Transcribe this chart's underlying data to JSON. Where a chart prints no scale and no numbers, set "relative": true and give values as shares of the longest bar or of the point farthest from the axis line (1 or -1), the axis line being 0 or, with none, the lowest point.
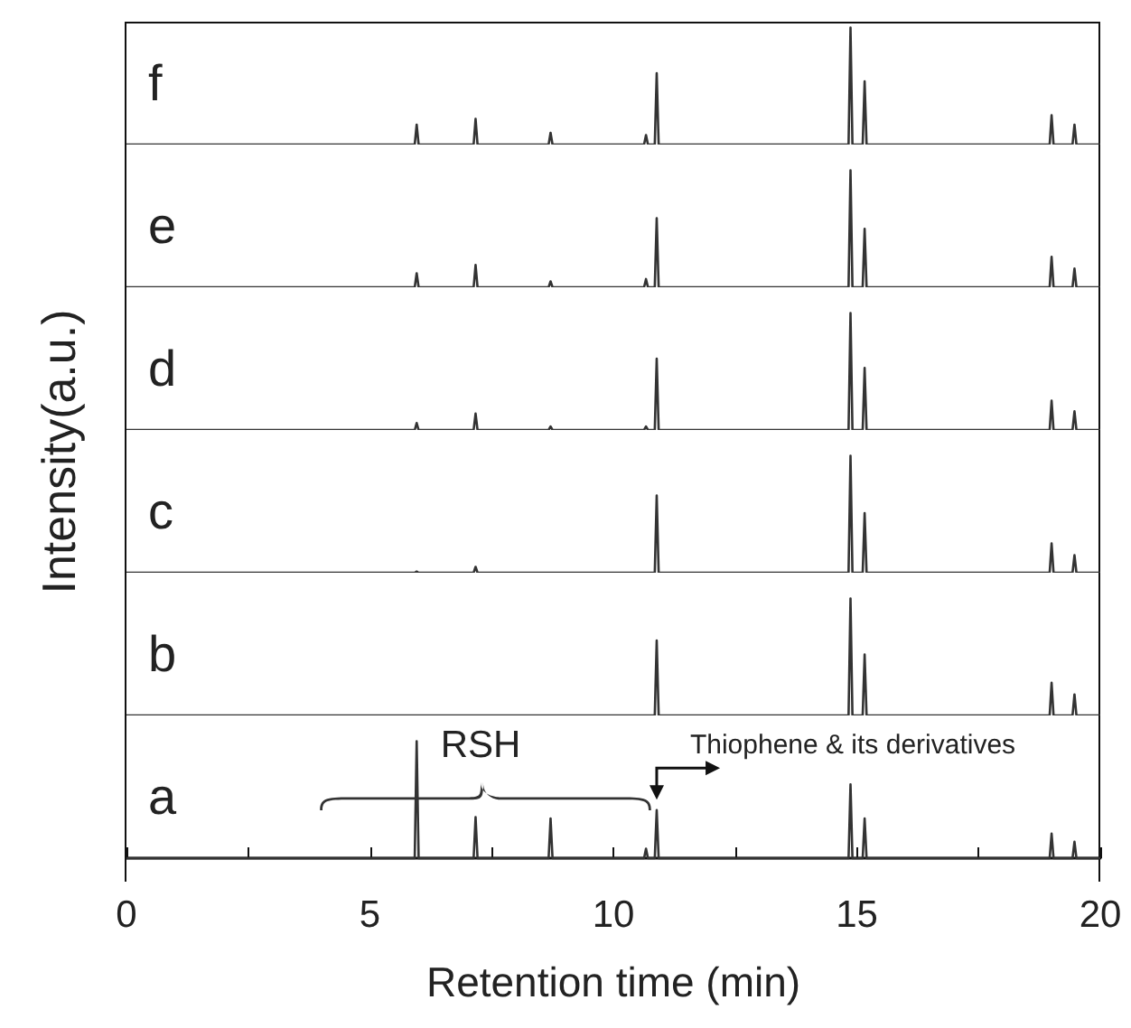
{
  "chart_data": [
    {
      "type": "line",
      "relative": true,
      "xlim": [
        0,
        20
      ],
      "tick_labels": false,
      "marker": "none",
      "series": [
        {
          "name": "f",
          "color": "#333333",
          "x": [
            0,
            5.92,
            5.96,
            6.0,
            7.13,
            7.17,
            7.21,
            8.67,
            8.71,
            8.75,
            10.63,
            10.67,
            10.71,
            10.85,
            10.89,
            10.93,
            14.83,
            14.87,
            14.91,
            15.12,
            15.16,
            15.2,
            18.96,
            19.0,
            19.04,
            19.43,
            19.47,
            19.51,
            20
          ],
          "values": [
            0,
            0,
            0.17,
            0,
            0,
            0.22,
            0,
            0,
            0.1,
            0,
            0,
            0.08,
            0,
            0,
            0.61,
            0,
            0,
            1,
            0,
            0,
            0.54,
            0,
            0,
            0.25,
            0,
            0,
            0.17,
            0,
            0
          ]
        }
      ]
    },
    {
      "type": "line",
      "relative": true,
      "xlim": [
        0,
        20
      ],
      "tick_labels": false,
      "marker": "none",
      "series": [
        {
          "name": "e",
          "color": "#333333",
          "x": [
            0,
            5.92,
            5.96,
            6.0,
            7.13,
            7.17,
            7.21,
            8.67,
            8.71,
            8.75,
            10.63,
            10.67,
            10.71,
            10.85,
            10.89,
            10.93,
            14.83,
            14.87,
            14.91,
            15.12,
            15.16,
            15.2,
            18.96,
            19.0,
            19.04,
            19.43,
            19.47,
            19.51,
            20
          ],
          "values": [
            0,
            0,
            0.12,
            0,
            0,
            0.19,
            0,
            0,
            0.05,
            0,
            0,
            0.07,
            0,
            0,
            0.59,
            0,
            0,
            1,
            0,
            0,
            0.5,
            0,
            0,
            0.26,
            0,
            0,
            0.16,
            0,
            0
          ]
        }
      ]
    },
    {
      "type": "line",
      "relative": true,
      "xlim": [
        0,
        20
      ],
      "tick_labels": false,
      "marker": "none",
      "series": [
        {
          "name": "d",
          "color": "#333333",
          "x": [
            0,
            5.92,
            5.96,
            6.0,
            7.13,
            7.17,
            7.21,
            8.67,
            8.71,
            8.75,
            10.63,
            10.67,
            10.71,
            10.85,
            10.89,
            10.93,
            14.83,
            14.87,
            14.91,
            15.12,
            15.16,
            15.2,
            18.96,
            19.0,
            19.04,
            19.43,
            19.47,
            19.51,
            20
          ],
          "values": [
            0,
            0,
            0.06,
            0,
            0,
            0.14,
            0,
            0,
            0.03,
            0,
            0,
            0.03,
            0,
            0,
            0.61,
            0,
            0,
            1,
            0,
            0,
            0.53,
            0,
            0,
            0.25,
            0,
            0,
            0.16,
            0,
            0
          ]
        }
      ]
    },
    {
      "type": "line",
      "relative": true,
      "xlim": [
        0,
        20
      ],
      "tick_labels": false,
      "marker": "none",
      "ylabel": "Intensity(a.u.)",
      "series": [
        {
          "name": "c",
          "color": "#333333",
          "x": [
            0,
            5.92,
            5.96,
            6.0,
            7.13,
            7.17,
            7.21,
            10.85,
            10.89,
            10.93,
            14.83,
            14.87,
            14.91,
            15.12,
            15.16,
            15.2,
            18.96,
            19.0,
            19.04,
            19.43,
            19.47,
            19.51,
            20
          ],
          "values": [
            0,
            0,
            0.01,
            0,
            0,
            0.05,
            0,
            0,
            0.66,
            0,
            0,
            1,
            0,
            0,
            0.51,
            0,
            0,
            0.25,
            0,
            0,
            0.15,
            0,
            0
          ]
        }
      ]
    },
    {
      "type": "line",
      "relative": true,
      "xlim": [
        0,
        20
      ],
      "tick_labels": false,
      "marker": "none",
      "series": [
        {
          "name": "b",
          "color": "#333333",
          "x": [
            0,
            10.85,
            10.89,
            10.93,
            14.83,
            14.87,
            14.91,
            15.12,
            15.16,
            15.2,
            18.96,
            19.0,
            19.04,
            19.43,
            19.47,
            19.51,
            20
          ],
          "values": [
            0,
            0,
            0.64,
            0,
            0,
            1,
            0,
            0,
            0.52,
            0,
            0,
            0.28,
            0,
            0,
            0.18,
            0,
            0
          ]
        }
      ]
    },
    {
      "type": "line",
      "relative": true,
      "xlim": [
        0,
        20
      ],
      "xticks": [
        0,
        {
          "value": 2.5,
          "label": null
        },
        5,
        {
          "value": 7.5,
          "label": null
        },
        10,
        {
          "value": 12.5,
          "label": null
        },
        15,
        {
          "value": 17.5,
          "label": null
        },
        20
      ],
      "tick_labels": "x",
      "marker": "none",
      "xlabel": "Retention time (min)",
      "annotations": [
        "RSH",
        "Thiophene & its derivatives"
      ],
      "series": [
        {
          "name": "a",
          "color": "#333333",
          "x": [
            0,
            5.92,
            5.96,
            6.0,
            7.13,
            7.17,
            7.21,
            8.67,
            8.71,
            8.75,
            10.63,
            10.67,
            10.71,
            10.85,
            10.89,
            10.93,
            14.83,
            14.87,
            14.91,
            15.12,
            15.16,
            15.2,
            18.96,
            19.0,
            19.04,
            19.43,
            19.47,
            19.51,
            20
          ],
          "values": [
            0,
            0,
            1,
            0,
            0,
            0.35,
            0,
            0,
            0.34,
            0,
            0,
            0.08,
            0,
            0,
            0.41,
            0,
            0,
            0.63,
            0,
            0,
            0.34,
            0,
            0,
            0.21,
            0,
            0,
            0.14,
            0,
            0
          ]
        }
      ]
    }
  ]
}
